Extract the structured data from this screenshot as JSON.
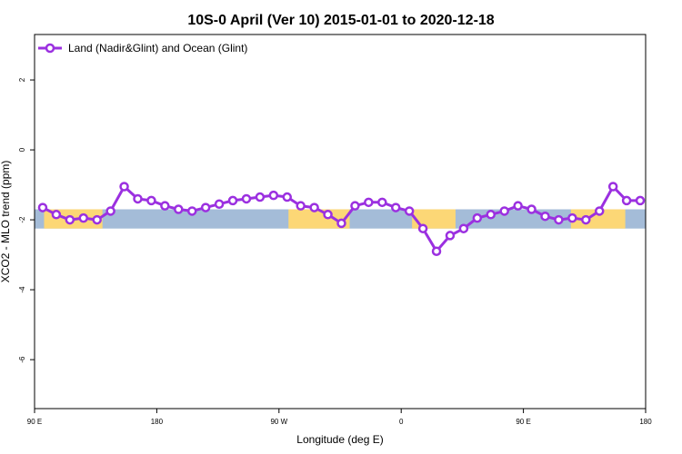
{
  "chart_data": {
    "type": "line",
    "title": "10S-0 April (Ver 10)   2015-01-01 to 2020-12-18",
    "xlabel": "Longitude (deg E)",
    "ylabel": "XCO2 - MLO trend (ppm)",
    "xlim": [
      90,
      540
    ],
    "ylim": [
      -7.4,
      3.3
    ],
    "x_ticks": [
      {
        "value": 90,
        "label": "90 E"
      },
      {
        "value": 180,
        "label": "180"
      },
      {
        "value": 270,
        "label": "90 W"
      },
      {
        "value": 360,
        "label": "0"
      },
      {
        "value": 450,
        "label": "90 E"
      },
      {
        "value": 540,
        "label": "180"
      }
    ],
    "y_ticks": [
      {
        "value": 2,
        "label": "2"
      },
      {
        "value": 0,
        "label": "0"
      },
      {
        "value": -2,
        "label": "-2"
      },
      {
        "value": -4,
        "label": "-4"
      },
      {
        "value": -6,
        "label": "-6"
      }
    ],
    "band": {
      "y_min": -2.25,
      "y_max": -1.7,
      "ocean_color": "#a4bcd8",
      "land_color": "#fcd776"
    },
    "land_segments": [
      {
        "x_min": 97,
        "x_max": 140
      },
      {
        "x_min": 277,
        "x_max": 322
      },
      {
        "x_min": 368,
        "x_max": 400
      },
      {
        "x_min": 485,
        "x_max": 525
      }
    ],
    "legend": {
      "position": "top-left"
    },
    "series": [
      {
        "name": "Land (Nadir&Glint) and Ocean (Glint)",
        "color": "#9b30e0",
        "x": [
          96,
          106,
          116,
          126,
          136,
          146,
          156,
          166,
          176,
          186,
          196,
          206,
          216,
          226,
          236,
          246,
          256,
          266,
          276,
          286,
          296,
          306,
          316,
          326,
          336,
          346,
          356,
          366,
          376,
          386,
          396,
          406,
          416,
          426,
          436,
          446,
          456,
          466,
          476,
          486,
          496,
          506,
          516,
          526,
          536
        ],
        "y": [
          -1.65,
          -1.85,
          -2.0,
          -1.95,
          -2.0,
          -1.75,
          -1.05,
          -1.4,
          -1.45,
          -1.6,
          -1.7,
          -1.75,
          -1.65,
          -1.55,
          -1.45,
          -1.4,
          -1.35,
          -1.3,
          -1.35,
          -1.6,
          -1.65,
          -1.85,
          -2.1,
          -1.6,
          -1.5,
          -1.5,
          -1.65,
          -1.75,
          -2.25,
          -2.9,
          -2.45,
          -2.25,
          -1.95,
          -1.85,
          -1.75,
          -1.6,
          -1.7,
          -1.9,
          -2.0,
          -1.95,
          -2.0,
          -1.75,
          -1.05,
          -1.45,
          -1.45
        ]
      }
    ]
  }
}
